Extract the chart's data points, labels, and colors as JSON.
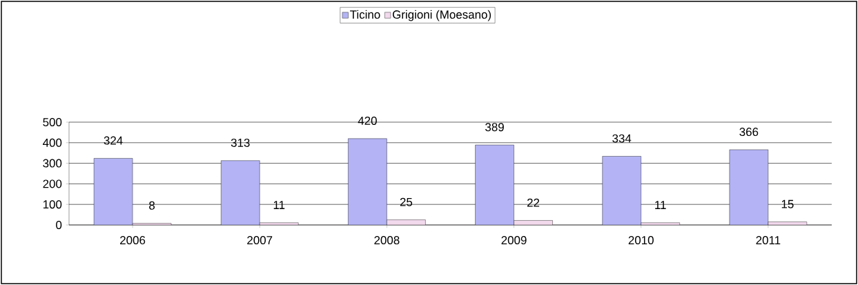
{
  "chart_data": {
    "type": "bar",
    "categories": [
      "2006",
      "2007",
      "2008",
      "2009",
      "2010",
      "2011"
    ],
    "series": [
      {
        "name": "Ticino",
        "color": "#b3b3f5",
        "values": [
          324,
          313,
          420,
          389,
          334,
          366
        ]
      },
      {
        "name": "Grigioni (Moesano)",
        "color": "#f2d9ec",
        "values": [
          8,
          11,
          25,
          22,
          11,
          15
        ]
      }
    ],
    "ylim": [
      0,
      500
    ],
    "yticks": [
      0,
      100,
      200,
      300,
      400,
      500
    ],
    "grid": "y",
    "legend": "top",
    "data_labels": true
  }
}
